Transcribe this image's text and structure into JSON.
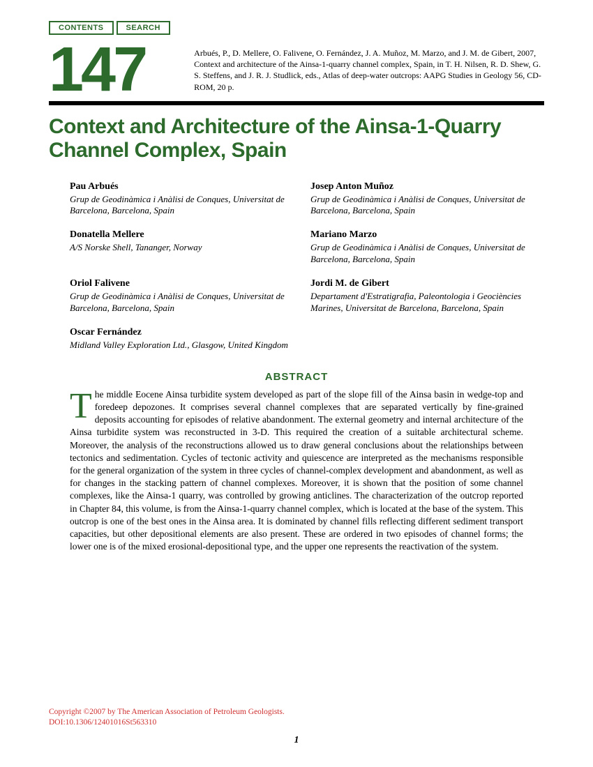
{
  "buttons": {
    "contents": "CONTENTS",
    "search": "SEARCH"
  },
  "chapter_number": "147",
  "citation": "Arbués, P., D. Mellere, O. Falivene, O. Fernández, J. A. Muñoz, M. Marzo, and J. M. de Gibert, 2007, Context and architecture of the Ainsa-1-quarry channel complex, Spain, in T. H. Nilsen, R. D. Shew, G. S. Steffens, and J. R. J. Studlick, eds., Atlas of deep-water outcrops: AAPG Studies in Geology 56, CD-ROM, 20 p.",
  "title": "Context and Architecture of the Ainsa-1-Quarry Channel Complex, Spain",
  "authors": {
    "left": [
      {
        "name": "Pau Arbués",
        "aff": "Grup de Geodinàmica i Anàlisi de Conques, Universitat de Barcelona, Barcelona, Spain"
      },
      {
        "name": "Donatella Mellere",
        "aff": "A/S Norske Shell, Tananger, Norway"
      },
      {
        "name": "Oriol Falivene",
        "aff": "Grup de Geodinàmica i Anàlisi de Conques, Universitat de Barcelona, Barcelona, Spain"
      },
      {
        "name": "Oscar Fernández",
        "aff": "Midland Valley Exploration Ltd., Glasgow, United Kingdom"
      }
    ],
    "right": [
      {
        "name": "Josep Anton Muñoz",
        "aff": "Grup de Geodinàmica i Anàlisi de Conques, Universitat de Barcelona, Barcelona, Spain"
      },
      {
        "name": "Mariano Marzo",
        "aff": "Grup de Geodinàmica i Anàlisi de Conques, Universitat de Barcelona, Barcelona, Spain"
      },
      {
        "name": "Jordi M. de Gibert",
        "aff": "Departament d'Estratigrafia, Paleontologia i Geociències Marines, Universitat de Barcelona, Barcelona, Spain"
      }
    ]
  },
  "abstract_heading": "ABSTRACT",
  "abstract": {
    "dropcap": "T",
    "body": "he middle Eocene Ainsa turbidite system developed as part of the slope fill of the Ainsa basin in wedge-top and foredeep depozones. It comprises several channel complexes that are separated vertically by fine-grained deposits accounting for episodes of relative abandonment. The external geometry and internal architecture of the Ainsa turbidite system was reconstructed in 3-D. This required the creation of a suitable architectural scheme. Moreover, the analysis of the reconstructions allowed us to draw general conclusions about the relationships between tectonics and sedimentation. Cycles of tectonic activity and quiescence are interpreted as the mechanisms responsible for the general organization of the system in three cycles of channel-complex development and abandonment, as well as for changes in the stacking pattern of channel complexes. Moreover, it is shown that the position of some channel complexes, like the Ainsa-1 quarry, was controlled by growing anticlines. The characterization of the outcrop reported in Chapter 84, this volume, is from the Ainsa-1-quarry channel complex, which is located at the base of the system. This outcrop is one of the best ones in the Ainsa area. It is dominated by channel fills reflecting different sediment transport capacities, but other depositional elements are also present. These are ordered in two episodes of channel forms; the lower one is of the mixed erosional-depositional type, and the upper one represents the reactivation of the system."
  },
  "copyright_line1": "Copyright ©2007 by The American Association of Petroleum Geologists.",
  "copyright_line2": "DOI:10.1306/12401016St563310",
  "page_number": "1",
  "colors": {
    "green": "#2d6b2d",
    "red": "#d03030",
    "black": "#000000",
    "background": "#ffffff"
  }
}
